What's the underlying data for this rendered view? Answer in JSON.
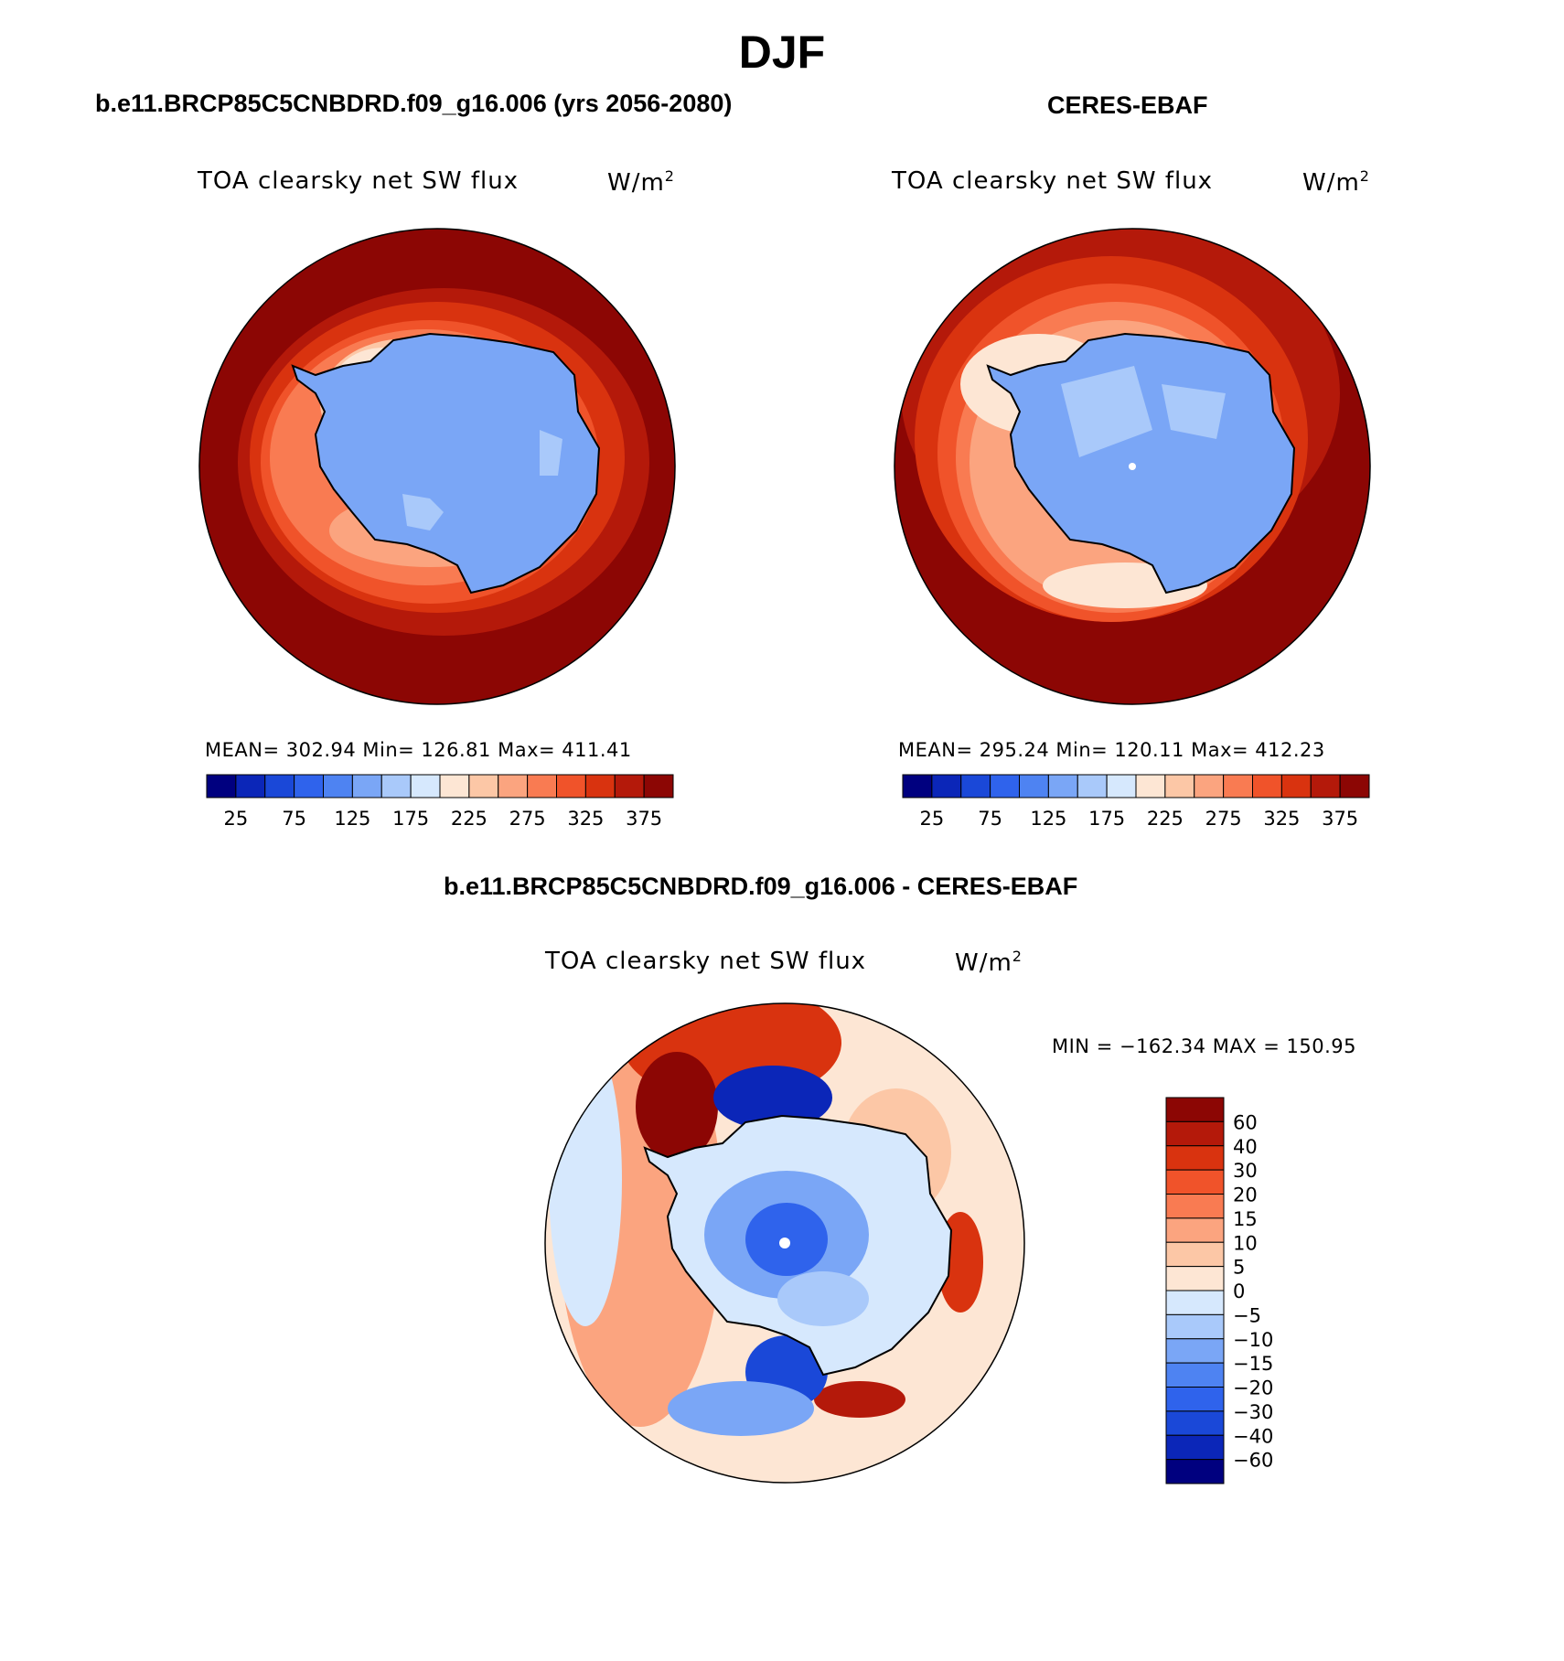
{
  "figure": {
    "season": "DJF",
    "left_panel_title": "b.e11.BRCP85C5CNBDRD.f09_g16.006 (yrs 2056-2080)",
    "right_panel_title": "CERES-EBAF",
    "diff_panel_title": "b.e11.BRCP85C5CNBDRD.f09_g16.006 - CERES-EBAF"
  },
  "panels": {
    "model": {
      "variable": "TOA clearsky net SW flux",
      "unit_base": "W/m",
      "unit_exp": "2",
      "stats": "MEAN= 302.94   Min= 126.81   Max= 411.41"
    },
    "obs": {
      "variable": "TOA clearsky net SW flux",
      "unit_base": "W/m",
      "unit_exp": "2",
      "stats": "MEAN= 295.24   Min= 120.11   Max= 412.23"
    },
    "diff": {
      "variable": "TOA clearsky net SW flux",
      "unit_base": "W/m",
      "unit_exp": "2",
      "stats": "MIN = −162.34 MAX = 150.95"
    }
  },
  "chart_data": [
    {
      "type": "heatmap",
      "projection": "south-polar-stereographic",
      "title": "TOA clearsky net SW flux",
      "units": "W/m2",
      "mean": 302.94,
      "min": 126.81,
      "max": 411.41,
      "contour_levels": [
        0,
        25,
        50,
        75,
        100,
        125,
        150,
        175,
        200,
        225,
        250,
        275,
        300,
        325,
        350,
        375,
        400
      ],
      "colorbar_tick_labels": [
        "25",
        "75",
        "125",
        "175",
        "225",
        "275",
        "325",
        "375"
      ],
      "colors": [
        "#00007f",
        "#0b26b8",
        "#1a48d8",
        "#2f63ec",
        "#4e83f2",
        "#7aa6f6",
        "#a9c9fa",
        "#d6e8fd",
        "#fde6d4",
        "#fcc7a6",
        "#fba47f",
        "#f97b52",
        "#f0532a",
        "#d9330f",
        "#b4190a",
        "#8c0604"
      ]
    },
    {
      "type": "heatmap",
      "projection": "south-polar-stereographic",
      "title": "TOA clearsky net SW flux",
      "units": "W/m2",
      "mean": 295.24,
      "min": 120.11,
      "max": 412.23,
      "contour_levels": [
        0,
        25,
        50,
        75,
        100,
        125,
        150,
        175,
        200,
        225,
        250,
        275,
        300,
        325,
        350,
        375,
        400
      ],
      "colorbar_tick_labels": [
        "25",
        "75",
        "125",
        "175",
        "225",
        "275",
        "325",
        "375"
      ],
      "colors": [
        "#00007f",
        "#0b26b8",
        "#1a48d8",
        "#2f63ec",
        "#4e83f2",
        "#7aa6f6",
        "#a9c9fa",
        "#d6e8fd",
        "#fde6d4",
        "#fcc7a6",
        "#fba47f",
        "#f97b52",
        "#f0532a",
        "#d9330f",
        "#b4190a",
        "#8c0604"
      ]
    },
    {
      "type": "heatmap",
      "projection": "south-polar-stereographic",
      "title": "TOA clearsky net SW flux",
      "units": "W/m2",
      "min": -162.34,
      "max": 150.95,
      "contour_levels": [
        -60,
        -40,
        -30,
        -20,
        -15,
        -10,
        -5,
        0,
        5,
        10,
        15,
        20,
        30,
        40,
        60
      ],
      "colorbar_tick_labels": [
        "60",
        "40",
        "30",
        "20",
        "15",
        "10",
        "5",
        "0",
        "−5",
        "−10",
        "−15",
        "−20",
        "−30",
        "−40",
        "−60"
      ],
      "colors_top_to_bottom": [
        "#8c0604",
        "#b4190a",
        "#d9330f",
        "#f0532a",
        "#f97b52",
        "#fba47f",
        "#fcc7a6",
        "#fde6d4",
        "#d6e8fd",
        "#a9c9fa",
        "#7aa6f6",
        "#4e83f2",
        "#2f63ec",
        "#1a48d8",
        "#0b26b8",
        "#00007f"
      ]
    }
  ]
}
